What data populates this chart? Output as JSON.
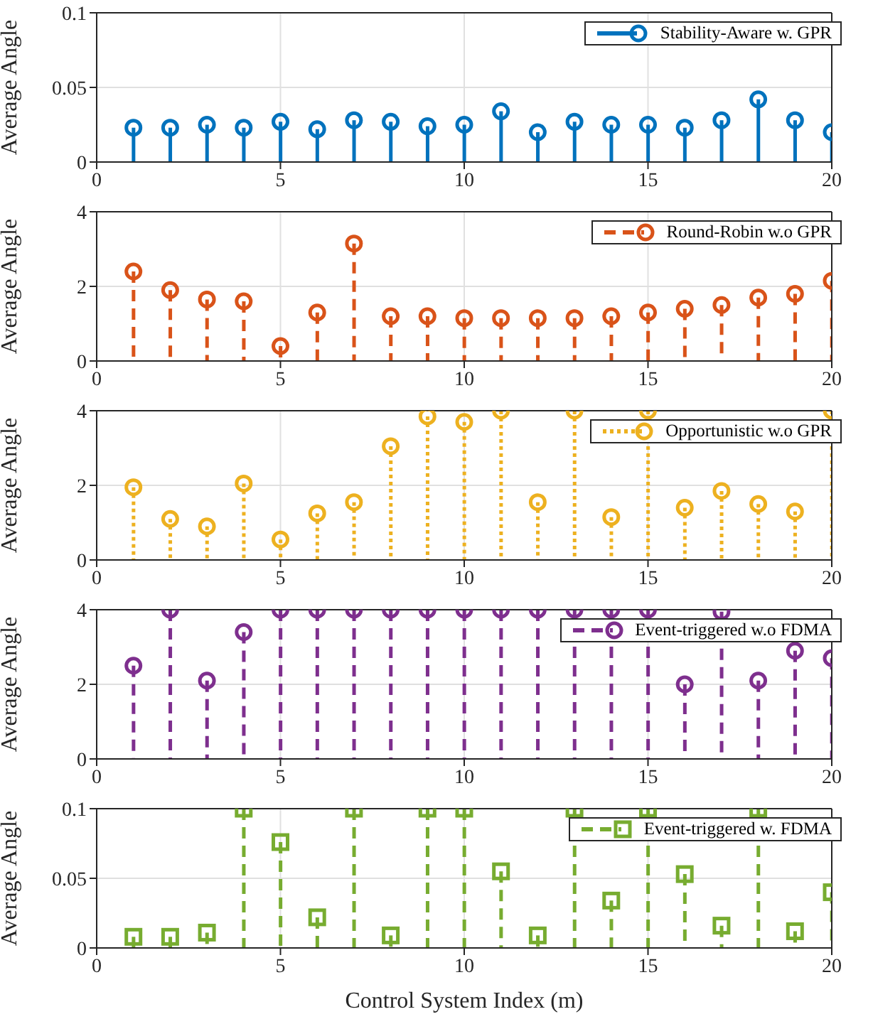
{
  "chart_data": [
    {
      "type": "lollipop",
      "ylabel": "Average Angle",
      "x": [
        1,
        2,
        3,
        4,
        5,
        6,
        7,
        8,
        9,
        10,
        11,
        12,
        13,
        14,
        15,
        16,
        17,
        18,
        19,
        20
      ],
      "xlim": [
        0,
        20
      ],
      "xticks": [
        0,
        5,
        10,
        15,
        20
      ],
      "ylim": [
        0,
        0.1
      ],
      "yticks": [
        0,
        0.05,
        0.1
      ],
      "grid": true,
      "legend": "top right",
      "marker": "circle",
      "line_style": "solid",
      "series": [
        {
          "name": "Stability-Aware w. GPR",
          "color": "#0072bd",
          "values": [
            0.023,
            0.023,
            0.025,
            0.023,
            0.027,
            0.022,
            0.028,
            0.027,
            0.024,
            0.025,
            0.034,
            0.02,
            0.027,
            0.025,
            0.025,
            0.023,
            0.028,
            0.042,
            0.028,
            0.02
          ]
        }
      ]
    },
    {
      "type": "lollipop",
      "ylabel": "Average Angle",
      "x": [
        1,
        2,
        3,
        4,
        5,
        6,
        7,
        8,
        9,
        10,
        11,
        12,
        13,
        14,
        15,
        16,
        17,
        18,
        19,
        20
      ],
      "xlim": [
        0,
        20
      ],
      "xticks": [
        0,
        5,
        10,
        15,
        20
      ],
      "ylim": [
        0,
        4
      ],
      "yticks": [
        0,
        2,
        4
      ],
      "grid": true,
      "legend": "top right",
      "marker": "circle",
      "line_style": "dashed",
      "series": [
        {
          "name": "Round-Robin w.o GPR",
          "color": "#d95319",
          "values": [
            2.4,
            1.9,
            1.65,
            1.6,
            0.4,
            1.3,
            3.15,
            1.2,
            1.2,
            1.15,
            1.15,
            1.15,
            1.15,
            1.2,
            1.3,
            1.4,
            1.5,
            1.7,
            1.8,
            2.15
          ]
        }
      ]
    },
    {
      "type": "lollipop",
      "ylabel": "Average Angle",
      "x": [
        1,
        2,
        3,
        4,
        5,
        6,
        7,
        8,
        9,
        10,
        11,
        12,
        13,
        14,
        15,
        16,
        17,
        18,
        19,
        20
      ],
      "xlim": [
        0,
        20
      ],
      "xticks": [
        0,
        5,
        10,
        15,
        20
      ],
      "ylim": [
        0,
        4
      ],
      "yticks": [
        0,
        2,
        4
      ],
      "grid": true,
      "legend": "top right",
      "marker": "circle",
      "line_style": "dotted",
      "series": [
        {
          "name": "Opportunistic w.o GPR",
          "color": "#edb120",
          "values": [
            1.95,
            1.1,
            0.9,
            2.05,
            0.55,
            1.25,
            1.55,
            3.05,
            3.85,
            3.7,
            4,
            1.55,
            4,
            1.15,
            4,
            1.4,
            1.85,
            1.5,
            1.3,
            4
          ]
        }
      ]
    },
    {
      "type": "lollipop",
      "ylabel": "Average Angle",
      "x": [
        1,
        2,
        3,
        4,
        5,
        6,
        7,
        8,
        9,
        10,
        11,
        12,
        13,
        14,
        15,
        16,
        17,
        18,
        19,
        20
      ],
      "xlim": [
        0,
        20
      ],
      "xticks": [
        0,
        5,
        10,
        15,
        20
      ],
      "ylim": [
        0,
        4
      ],
      "yticks": [
        0,
        2,
        4
      ],
      "grid": true,
      "legend": "top right",
      "marker": "circle",
      "line_style": "dashed",
      "series": [
        {
          "name": "Event-triggered w.o FDMA",
          "color": "#7e2f8e",
          "values": [
            2.5,
            4,
            2.1,
            3.4,
            4,
            4,
            4,
            4,
            4,
            4,
            4,
            4,
            4,
            4,
            4,
            2.0,
            3.95,
            2.1,
            2.9,
            2.7
          ]
        }
      ]
    },
    {
      "type": "lollipop",
      "ylabel": "Average Angle",
      "xlabel": "Control System Index (m)",
      "x": [
        1,
        2,
        3,
        4,
        5,
        6,
        7,
        8,
        9,
        10,
        11,
        12,
        13,
        14,
        15,
        16,
        17,
        18,
        19,
        20
      ],
      "xlim": [
        0,
        20
      ],
      "xticks": [
        0,
        5,
        10,
        15,
        20
      ],
      "ylim": [
        0,
        0.1
      ],
      "yticks": [
        0,
        0.05,
        0.1
      ],
      "grid": true,
      "legend": "top right",
      "marker": "square",
      "line_style": "dashed",
      "series": [
        {
          "name": "Event-triggered w. FDMA",
          "color": "#77ac30",
          "values": [
            0.008,
            0.008,
            0.011,
            0.1,
            0.076,
            0.022,
            0.1,
            0.009,
            0.1,
            0.1,
            0.055,
            0.009,
            0.1,
            0.034,
            0.1,
            0.053,
            0.016,
            0.1,
            0.012,
            0.04
          ]
        }
      ]
    }
  ]
}
